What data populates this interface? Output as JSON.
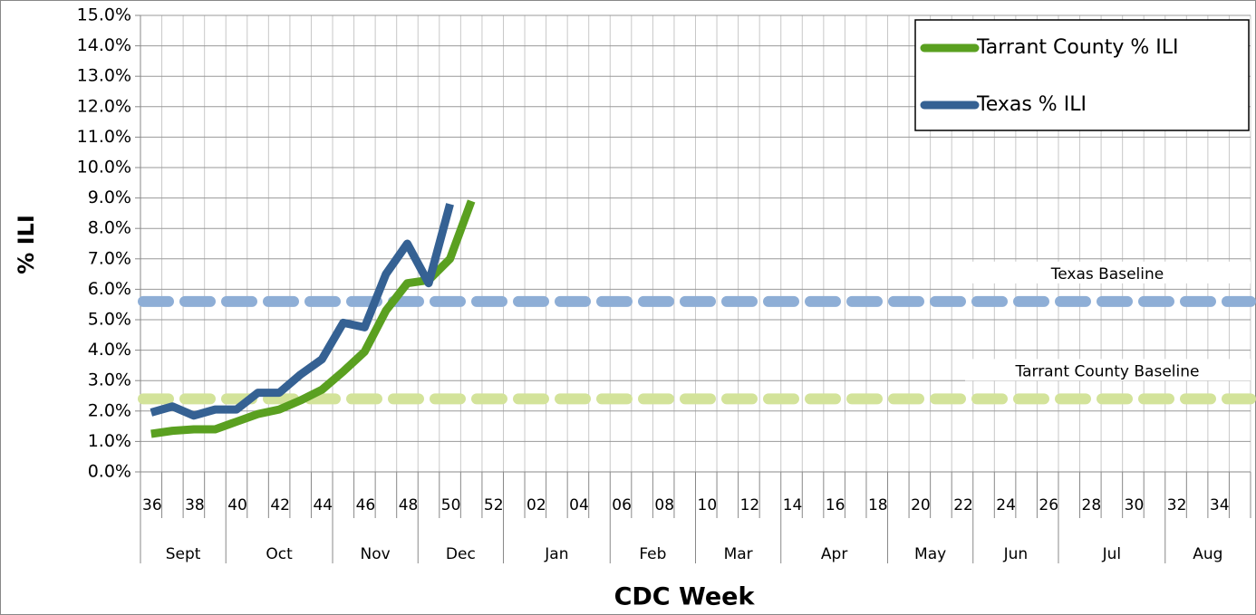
{
  "chart_data": {
    "type": "line",
    "y_label": "% ILI",
    "x_label": "CDC Week",
    "categories": [
      "36",
      null,
      "38",
      null,
      "40",
      null,
      "42",
      null,
      "44",
      null,
      "46",
      null,
      "48",
      null,
      "50",
      null,
      "52",
      null,
      "02",
      null,
      "04",
      null,
      "06",
      null,
      "08",
      null,
      "10",
      null,
      "12",
      null,
      "14",
      null,
      "16",
      null,
      "18",
      null,
      "20",
      null,
      "22",
      null,
      "24",
      null,
      "26",
      null,
      "28",
      null,
      "30",
      null,
      "32",
      null,
      "34",
      null
    ],
    "months": [
      "Sept",
      "Oct",
      "Nov",
      "Dec",
      "Jan",
      "Feb",
      "Mar",
      "Apr",
      "May",
      "Jun",
      "Jul",
      "Aug"
    ],
    "series": [
      {
        "name": "Tarrant County % ILI",
        "color": "#5aa020",
        "values": [
          1.25,
          1.35,
          1.4,
          1.4,
          1.65,
          1.9,
          2.05,
          2.35,
          2.7,
          3.3,
          3.95,
          5.3,
          6.2,
          6.3,
          7.0,
          8.9,
          null,
          null,
          null,
          null,
          null,
          null,
          null,
          null,
          null,
          null,
          null,
          null,
          null,
          null,
          null,
          null,
          null,
          null,
          null,
          null,
          null,
          null,
          null,
          null,
          null,
          null,
          null,
          null,
          null,
          null,
          null,
          null,
          null,
          null,
          null,
          null
        ]
      },
      {
        "name": "Texas % ILI",
        "color": "#356193",
        "values": [
          1.95,
          2.15,
          1.85,
          2.05,
          2.05,
          2.6,
          2.6,
          3.2,
          3.7,
          4.9,
          4.75,
          6.5,
          7.5,
          6.2,
          8.8,
          null,
          null,
          null,
          null,
          null,
          null,
          null,
          null,
          null,
          null,
          null,
          null,
          null,
          null,
          null,
          null,
          null,
          null,
          null,
          null,
          null,
          null,
          null,
          null,
          null,
          null,
          null,
          null,
          null,
          null,
          null,
          null,
          null,
          null,
          null,
          null,
          null
        ]
      }
    ],
    "baselines": [
      {
        "label": "Texas Baseline",
        "value": 5.6,
        "color": "#8eaed6"
      },
      {
        "label": "Tarrant County Baseline",
        "value": 2.4,
        "color": "#d3e39a"
      }
    ],
    "ylim": [
      0,
      15
    ],
    "yticks": [
      {
        "value": 0,
        "label": "0.0%"
      },
      {
        "value": 1,
        "label": "1.0%"
      },
      {
        "value": 2,
        "label": "2.0%"
      },
      {
        "value": 3,
        "label": "3.0%"
      },
      {
        "value": 4,
        "label": "4.0%"
      },
      {
        "value": 5,
        "label": "5.0%"
      },
      {
        "value": 6,
        "label": "6.0%"
      },
      {
        "value": 7,
        "label": "7.0%"
      },
      {
        "value": 8,
        "label": "8.0%"
      },
      {
        "value": 9,
        "label": "9.0%"
      },
      {
        "value": 10,
        "label": "10.0%"
      },
      {
        "value": 11,
        "label": "11.0%"
      },
      {
        "value": 12,
        "label": "12.0%"
      },
      {
        "value": 13,
        "label": "13.0%"
      },
      {
        "value": 14,
        "label": "14.0%"
      },
      {
        "value": 15,
        "label": "15.0%"
      }
    ],
    "grid": true,
    "legend": "upper right"
  }
}
